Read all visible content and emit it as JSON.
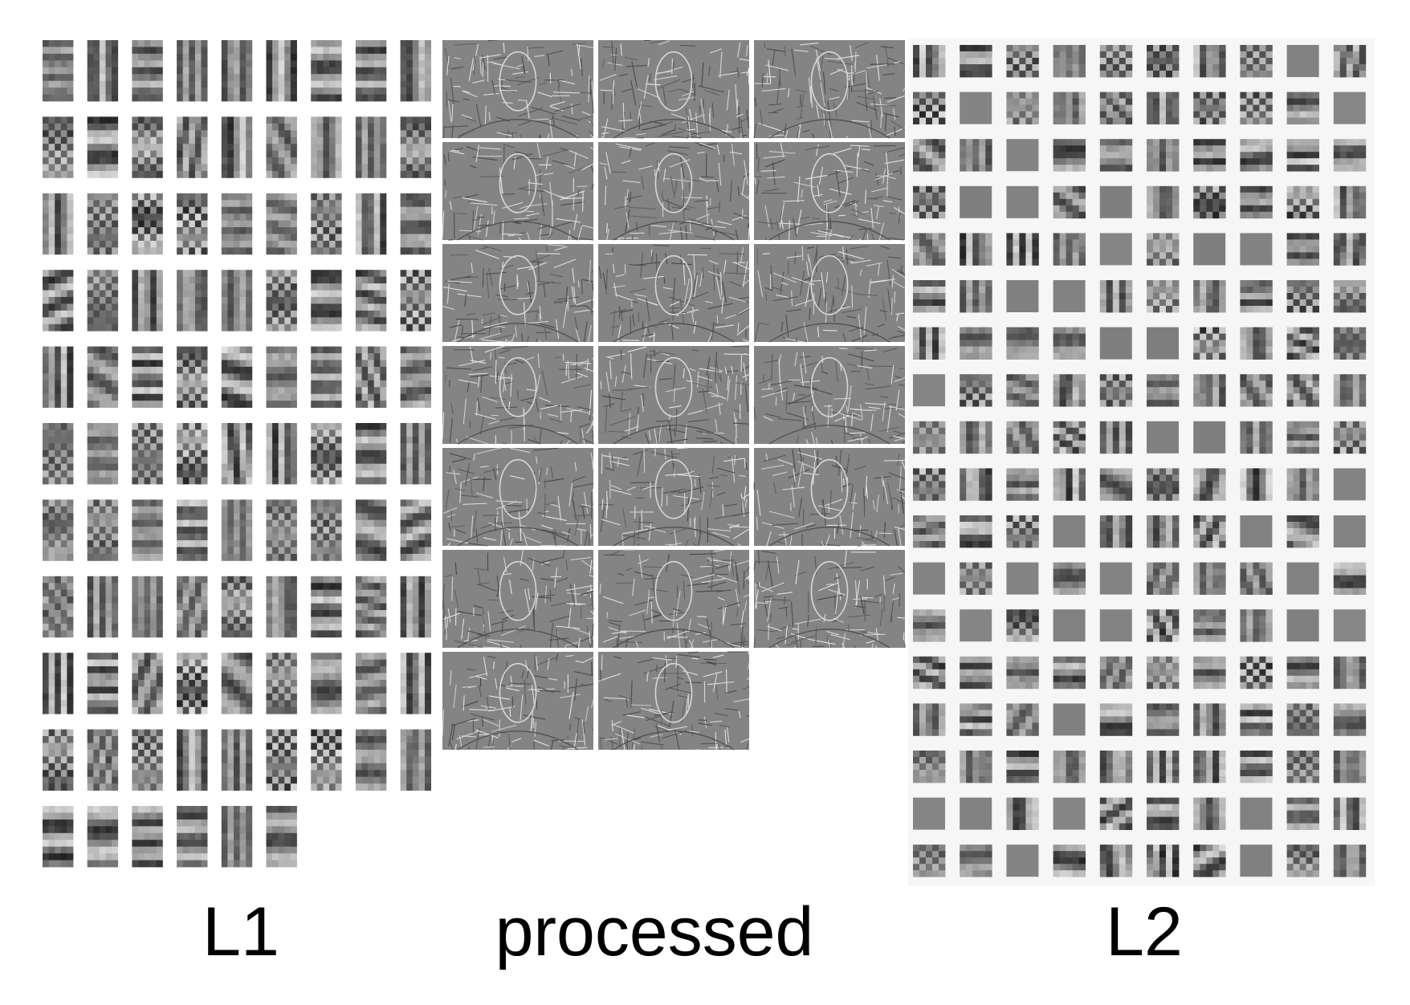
{
  "figure": {
    "panels": [
      {
        "id": "l1",
        "caption": "L1",
        "filter_count": 96,
        "grid_columns": 9
      },
      {
        "id": "processed",
        "caption": "processed",
        "image_count": 20,
        "grid_columns": 3
      },
      {
        "id": "l2",
        "caption": "L2",
        "filter_count": 180,
        "grid_columns": 10
      }
    ]
  },
  "colors": {
    "background": "#ffffff",
    "l2_background": "#f6f6f6",
    "filter_mid_gray": "#888888",
    "caption_text": "#000000"
  }
}
